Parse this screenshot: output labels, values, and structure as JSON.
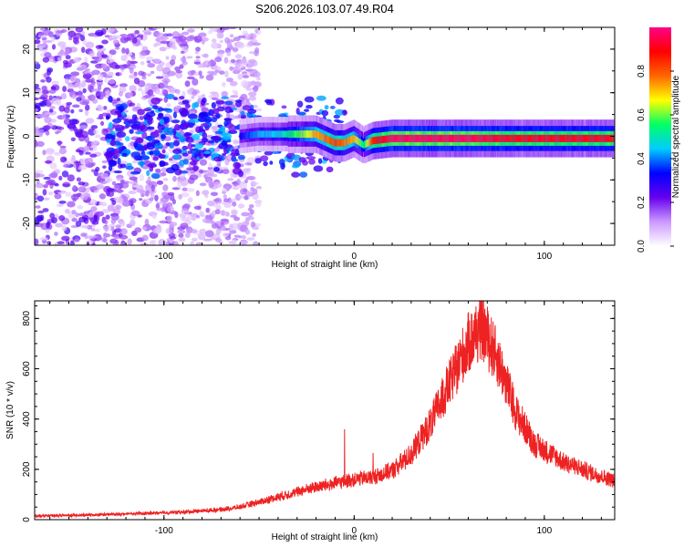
{
  "figure": {
    "title": "S206.2026.103.07.49.R04"
  },
  "chart_data": [
    {
      "type": "heatmap",
      "xlabel": "Height of straight line (km)",
      "ylabel": "Frequency (Hz)",
      "xlim": [
        -168,
        137
      ],
      "ylim": [
        -25,
        25
      ],
      "x_ticks": [
        "-100",
        "0",
        "100"
      ],
      "x_tick_values": [
        -100,
        0,
        100
      ],
      "y_ticks": [
        "20",
        "10",
        "0",
        "-10",
        "-20"
      ],
      "y_tick_values": [
        20,
        10,
        0,
        -10,
        -20
      ],
      "grid": false,
      "colorbar": {
        "label": "Normalized spectral amplitude",
        "range": [
          0,
          1
        ],
        "ticks": [
          "0.0",
          "0.2",
          "0.4",
          "0.6",
          "0.8"
        ],
        "tick_values": [
          0.0,
          0.2,
          0.4,
          0.6,
          0.8
        ],
        "colors": [
          "#ffffff",
          "#cc99ff",
          "#6600ee",
          "#0000ff",
          "#00ccff",
          "#00ff66",
          "#ffff00",
          "#ff6600",
          "#ff0000",
          "#ff0088"
        ]
      },
      "ridge": {
        "x": [
          -60,
          -50,
          -40,
          -30,
          -20,
          -10,
          -5,
          0,
          5,
          10,
          20,
          40,
          60,
          80,
          100,
          120,
          137
        ],
        "frequency": [
          0,
          0.5,
          0.5,
          0.5,
          0.5,
          -1.5,
          -1.5,
          -0.5,
          -2,
          -1,
          -0.5,
          -0.5,
          -0.5,
          -0.5,
          -0.5,
          -0.5,
          -0.5
        ],
        "amplitude": [
          0.3,
          0.4,
          0.45,
          0.55,
          0.7,
          0.8,
          0.75,
          0.7,
          0.5,
          0.85,
          0.95,
          0.95,
          0.95,
          0.9,
          0.9,
          0.9,
          0.9
        ]
      },
      "noise_region": {
        "x_from": -168,
        "x_to": -60,
        "amplitude": 0.3
      }
    },
    {
      "type": "line",
      "xlabel": "Height of straight line (km)",
      "ylabel": "SNR (10 * v/v)",
      "xlim": [
        -168,
        137
      ],
      "ylim": [
        0,
        870
      ],
      "x_ticks": [
        "-100",
        "0",
        "100"
      ],
      "x_tick_values": [
        -100,
        0,
        100
      ],
      "y_ticks": [
        "0",
        "200",
        "400",
        "600",
        "800"
      ],
      "y_tick_values": [
        0,
        200,
        400,
        600,
        800
      ],
      "grid": false,
      "color": "#ee2222",
      "envelope": {
        "x": [
          -168,
          -140,
          -110,
          -90,
          -70,
          -60,
          -50,
          -40,
          -30,
          -20,
          -10,
          0,
          10,
          20,
          30,
          40,
          50,
          60,
          67,
          75,
          85,
          95,
          110,
          125,
          137
        ],
        "y": [
          15,
          18,
          25,
          30,
          40,
          50,
          70,
          90,
          110,
          130,
          145,
          160,
          170,
          195,
          260,
          380,
          540,
          700,
          770,
          650,
          430,
          300,
          230,
          185,
          155
        ]
      },
      "spikes": [
        {
          "x": -5,
          "y": 360
        },
        {
          "x": 10,
          "y": 265
        },
        {
          "x": 67,
          "y": 860
        }
      ]
    }
  ]
}
